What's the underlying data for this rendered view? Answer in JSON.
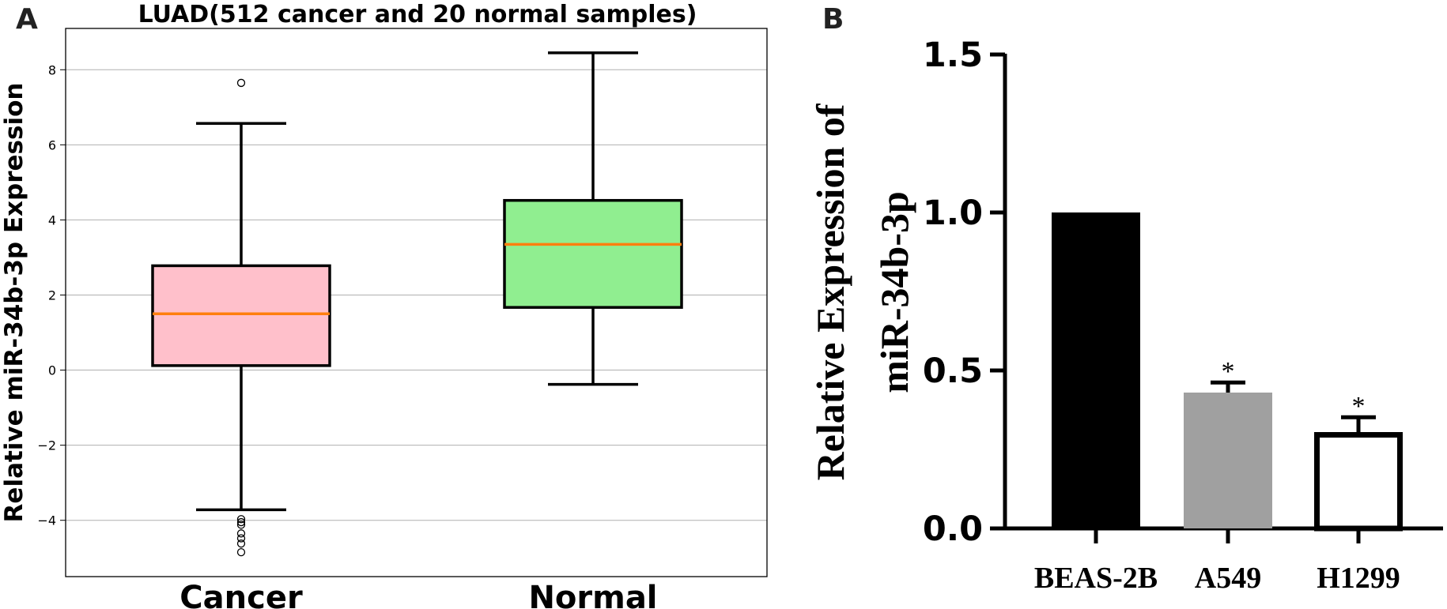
{
  "panels": {
    "a": {
      "letter": "A"
    },
    "b": {
      "letter": "B"
    }
  },
  "chart_data": [
    {
      "type": "box",
      "title": "LUAD(512 cancer and 20 normal samples)",
      "xlabel": "",
      "ylabel": "Relative miR-34b-3p Expression",
      "ylim": [
        -5.5,
        9.1
      ],
      "yticks": [
        -4,
        -2,
        0,
        2,
        4,
        6,
        8
      ],
      "ytick_labels": [
        "−4",
        "−2",
        "0",
        "2",
        "4",
        "6",
        "8"
      ],
      "grid": "horizontal",
      "categories": [
        "Cancer",
        "Normal"
      ],
      "boxes": [
        {
          "name": "Cancer",
          "whisker_low": -3.72,
          "q1": 0.12,
          "median": 1.5,
          "q3": 2.78,
          "whisker_high": 6.57,
          "outliers": [
            7.65,
            -3.97,
            -4.05,
            -4.12,
            -4.35,
            -4.48,
            -4.62,
            -4.85
          ],
          "fill": "#ffc0cb"
        },
        {
          "name": "Normal",
          "whisker_low": -0.38,
          "q1": 1.67,
          "median": 3.35,
          "q3": 4.52,
          "whisker_high": 8.45,
          "outliers": [],
          "fill": "#90ee90"
        }
      ],
      "median_color": "#ff7f0e"
    },
    {
      "type": "bar",
      "title": "",
      "xlabel": "",
      "ylabel": "Relative Expression of miR-34b-3p",
      "ylabel_lines": [
        "Relative Expression of",
        "miR-34b-3p"
      ],
      "ylim": [
        0,
        1.5
      ],
      "yticks": [
        0,
        0.5,
        1,
        1.5
      ],
      "ytick_labels": [
        "0.0",
        "0.5",
        "1.0",
        "1.5"
      ],
      "categories": [
        "BEAS-2B",
        "A549",
        "H1299"
      ],
      "values": [
        1.0,
        0.43,
        0.305
      ],
      "error_upper": [
        0,
        0.462,
        0.352
      ],
      "annotations": [
        "",
        "*",
        "*"
      ],
      "fills": [
        "#000000",
        "#a0a0a0",
        "#ffffff"
      ]
    }
  ]
}
